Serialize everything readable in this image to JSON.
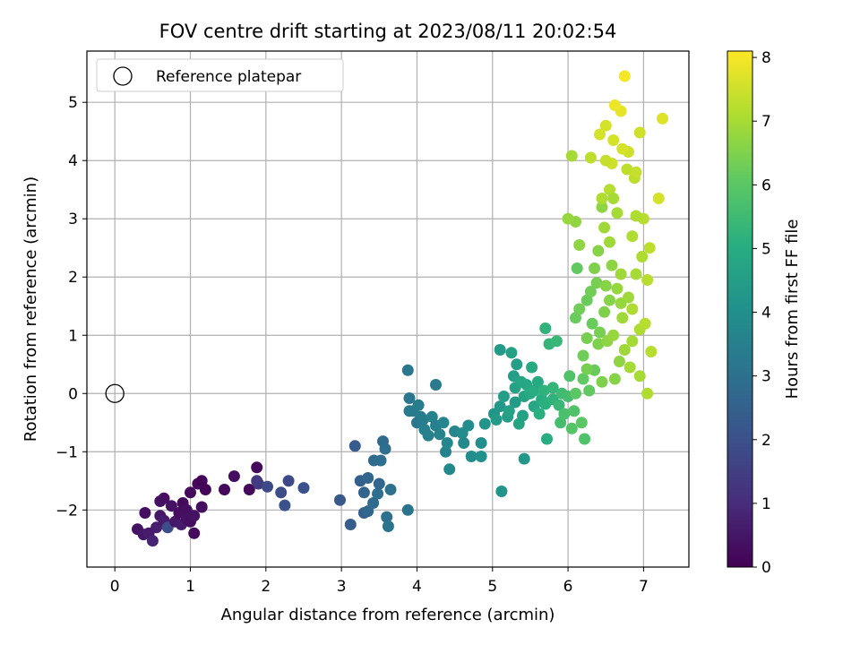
{
  "chart_data": {
    "type": "scatter",
    "title": "FOV centre drift starting at 2023/08/11 20:02:54",
    "xlabel": "Angular distance from reference (arcmin)",
    "ylabel": "Rotation from reference (arcmin)",
    "xlim": [
      -0.37,
      7.6
    ],
    "ylim": [
      -2.98,
      5.88
    ],
    "xticks": [
      0,
      1,
      2,
      3,
      4,
      5,
      6,
      7
    ],
    "yticks": [
      -2,
      -1,
      0,
      1,
      2,
      3,
      4,
      5
    ],
    "x_tick_labels": [
      "0",
      "1",
      "2",
      "3",
      "4",
      "5",
      "6",
      "7"
    ],
    "y_tick_labels": [
      "−2",
      "−1",
      "0",
      "1",
      "2",
      "3",
      "4",
      "5"
    ],
    "grid": true,
    "legend": {
      "placement": "top-left",
      "entries": [
        "Reference platepar"
      ]
    },
    "reference_point": {
      "x": 0,
      "y": 0,
      "marker": "open-circle"
    },
    "colorbar": {
      "label": "Hours from first FF file",
      "colormap": "viridis",
      "range": [
        0,
        8.1
      ],
      "ticks": [
        0,
        1,
        2,
        3,
        4,
        5,
        6,
        7,
        8
      ],
      "tick_labels": [
        "0",
        "1",
        "2",
        "3",
        "4",
        "5",
        "6",
        "7",
        "8"
      ]
    },
    "points": [
      [
        0.3,
        -2.33,
        0.4
      ],
      [
        0.38,
        -2.42,
        0.5
      ],
      [
        0.4,
        -2.05,
        0.3
      ],
      [
        0.45,
        -2.4,
        0.6
      ],
      [
        0.5,
        -2.53,
        0.8
      ],
      [
        0.55,
        -2.3,
        0.7
      ],
      [
        0.6,
        -2.1,
        0.5
      ],
      [
        0.6,
        -1.85,
        0.4
      ],
      [
        0.65,
        -1.8,
        0.3
      ],
      [
        0.65,
        -2.18,
        0.6
      ],
      [
        0.7,
        -2.3,
        1.9
      ],
      [
        0.75,
        -1.93,
        0.4
      ],
      [
        0.8,
        -2.2,
        0.5
      ],
      [
        0.85,
        -2.05,
        0.3
      ],
      [
        0.88,
        -2.25,
        0.6
      ],
      [
        0.9,
        -1.88,
        0.2
      ],
      [
        0.95,
        -2.0,
        0.3
      ],
      [
        0.95,
        -2.15,
        0.4
      ],
      [
        1.0,
        -1.7,
        0.2
      ],
      [
        1.0,
        -2.2,
        0.3
      ],
      [
        1.05,
        -2.4,
        0.2
      ],
      [
        1.05,
        -2.1,
        0.4
      ],
      [
        1.1,
        -1.55,
        0.2
      ],
      [
        1.15,
        -1.95,
        0.3
      ],
      [
        1.15,
        -1.5,
        0.1
      ],
      [
        1.2,
        -1.65,
        0.1
      ],
      [
        1.45,
        -1.65,
        0.2
      ],
      [
        1.58,
        -1.42,
        0.3
      ],
      [
        1.78,
        -1.65,
        0.2
      ],
      [
        1.88,
        -1.27,
        0.2
      ],
      [
        1.88,
        -1.5,
        1.3
      ],
      [
        1.9,
        -1.55,
        1.4
      ],
      [
        2.02,
        -1.6,
        1.8
      ],
      [
        2.2,
        -1.7,
        1.9
      ],
      [
        2.25,
        -1.92,
        2.0
      ],
      [
        2.3,
        -1.5,
        1.8
      ],
      [
        2.5,
        -1.62,
        2.0
      ],
      [
        2.98,
        -1.83,
        2.2
      ],
      [
        3.12,
        -2.25,
        2.4
      ],
      [
        3.18,
        -0.9,
        2.3
      ],
      [
        3.25,
        -1.5,
        2.5
      ],
      [
        3.3,
        -1.7,
        2.6
      ],
      [
        3.3,
        -2.05,
        2.5
      ],
      [
        3.35,
        -2.02,
        2.7
      ],
      [
        3.35,
        -1.45,
        2.7
      ],
      [
        3.42,
        -1.88,
        2.8
      ],
      [
        3.43,
        -1.15,
        2.8
      ],
      [
        3.48,
        -1.72,
        2.9
      ],
      [
        3.5,
        -1.55,
        2.7
      ],
      [
        3.52,
        -1.15,
        2.9
      ],
      [
        3.55,
        -0.82,
        2.8
      ],
      [
        3.58,
        -0.95,
        2.9
      ],
      [
        3.6,
        -2.12,
        3.0
      ],
      [
        3.62,
        -2.28,
        3.1
      ],
      [
        3.65,
        -1.65,
        3.0
      ],
      [
        3.88,
        -2.0,
        3.1
      ],
      [
        3.88,
        0.4,
        3.2
      ],
      [
        3.9,
        -0.08,
        3.2
      ],
      [
        3.9,
        -0.3,
        3.3
      ],
      [
        3.95,
        -0.3,
        3.3
      ],
      [
        4.0,
        -0.5,
        3.2
      ],
      [
        4.02,
        -0.2,
        3.4
      ],
      [
        4.05,
        -0.4,
        3.3
      ],
      [
        4.08,
        -0.45,
        3.4
      ],
      [
        4.1,
        -0.62,
        3.5
      ],
      [
        4.15,
        -0.72,
        3.5
      ],
      [
        4.2,
        -0.4,
        3.6
      ],
      [
        4.25,
        -0.55,
        3.5
      ],
      [
        4.25,
        0.15,
        3.3
      ],
      [
        4.3,
        -0.7,
        3.6
      ],
      [
        4.35,
        -0.5,
        3.7
      ],
      [
        4.38,
        -1.0,
        3.6
      ],
      [
        4.4,
        -0.85,
        3.7
      ],
      [
        4.43,
        -1.3,
        3.8
      ],
      [
        4.5,
        -0.65,
        3.7
      ],
      [
        4.6,
        -0.68,
        3.9
      ],
      [
        4.62,
        -0.85,
        3.8
      ],
      [
        4.68,
        -0.55,
        3.9
      ],
      [
        4.72,
        -1.08,
        3.9
      ],
      [
        4.85,
        -0.85,
        4.0
      ],
      [
        4.85,
        -1.08,
        4.1
      ],
      [
        4.9,
        -0.52,
        4.2
      ],
      [
        5.02,
        -0.35,
        4.2
      ],
      [
        5.05,
        -0.45,
        4.4
      ],
      [
        5.1,
        -0.22,
        4.3
      ],
      [
        5.1,
        0.75,
        4.4
      ],
      [
        5.12,
        -1.68,
        4.2
      ],
      [
        5.15,
        -0.05,
        4.5
      ],
      [
        5.2,
        -0.4,
        4.5
      ],
      [
        5.22,
        -0.3,
        4.6
      ],
      [
        5.25,
        0.7,
        4.6
      ],
      [
        5.28,
        0.3,
        4.5
      ],
      [
        5.3,
        -0.15,
        4.4
      ],
      [
        5.3,
        0.1,
        4.6
      ],
      [
        5.32,
        0.5,
        4.5
      ],
      [
        5.35,
        -0.52,
        4.7
      ],
      [
        5.38,
        0.2,
        4.8
      ],
      [
        5.4,
        -0.38,
        4.6
      ],
      [
        5.42,
        -1.12,
        4.3
      ],
      [
        5.42,
        -0.05,
        4.7
      ],
      [
        5.45,
        0.15,
        4.8
      ],
      [
        5.5,
        0.0,
        4.9
      ],
      [
        5.52,
        0.45,
        4.9
      ],
      [
        5.55,
        -0.22,
        4.8
      ],
      [
        5.55,
        0.05,
        5.0
      ],
      [
        5.6,
        0.2,
        4.9
      ],
      [
        5.62,
        -0.35,
        5.1
      ],
      [
        5.65,
        -0.1,
        5.0
      ],
      [
        5.68,
        0.05,
        5.2
      ],
      [
        5.7,
        -0.18,
        5.1
      ],
      [
        5.7,
        1.12,
        5.2
      ],
      [
        5.72,
        -0.78,
        5.0
      ],
      [
        5.75,
        0.85,
        5.3
      ],
      [
        5.8,
        -0.1,
        5.2
      ],
      [
        5.8,
        0.1,
        5.3
      ],
      [
        5.85,
        0.9,
        5.4
      ],
      [
        5.88,
        -0.2,
        5.4
      ],
      [
        5.9,
        -0.5,
        5.6
      ],
      [
        5.92,
        0.0,
        5.5
      ],
      [
        5.95,
        -0.35,
        5.7
      ],
      [
        6.0,
        -0.05,
        5.6
      ],
      [
        6.02,
        0.3,
        5.8
      ],
      [
        6.05,
        -0.6,
        5.9
      ],
      [
        6.05,
        4.08,
        7.0
      ],
      [
        6.08,
        -0.3,
        5.8
      ],
      [
        6.1,
        0.0,
        6.0
      ],
      [
        6.1,
        1.3,
        6.2
      ],
      [
        6.12,
        2.15,
        6.1
      ],
      [
        6.15,
        1.45,
        6.3
      ],
      [
        6.18,
        -0.5,
        6.0
      ],
      [
        6.2,
        0.25,
        6.1
      ],
      [
        6.2,
        0.65,
        6.3
      ],
      [
        6.22,
        -0.78,
        5.8
      ],
      [
        6.25,
        1.6,
        6.2
      ],
      [
        6.25,
        0.95,
        6.4
      ],
      [
        6.28,
        0.05,
        6.1
      ],
      [
        6.3,
        1.75,
        6.3
      ],
      [
        6.32,
        1.2,
        6.2
      ],
      [
        6.35,
        0.4,
        6.2
      ],
      [
        6.38,
        1.9,
        6.4
      ],
      [
        6.4,
        0.85,
        6.5
      ],
      [
        6.4,
        2.45,
        6.6
      ],
      [
        6.42,
        1.05,
        6.4
      ],
      [
        6.45,
        0.2,
        6.5
      ],
      [
        6.45,
        3.2,
        6.7
      ],
      [
        6.48,
        1.4,
        6.5
      ],
      [
        6.5,
        1.85,
        6.6
      ],
      [
        6.5,
        4.6,
        7.6
      ],
      [
        6.52,
        0.9,
        6.7
      ],
      [
        6.55,
        1.6,
        6.6
      ],
      [
        6.55,
        3.5,
        7.2
      ],
      [
        6.58,
        2.2,
        6.7
      ],
      [
        6.6,
        1.0,
        6.8
      ],
      [
        6.6,
        4.35,
        7.6
      ],
      [
        6.62,
        0.25,
        6.6
      ],
      [
        6.65,
        1.8,
        6.8
      ],
      [
        6.65,
        3.1,
        7.0
      ],
      [
        6.68,
        0.55,
        6.7
      ],
      [
        6.7,
        2.05,
        6.9
      ],
      [
        6.7,
        4.85,
        7.8
      ],
      [
        6.72,
        1.3,
        6.9
      ],
      [
        6.75,
        0.75,
        6.9
      ],
      [
        6.75,
        5.45,
        8.0
      ],
      [
        6.78,
        3.85,
        7.3
      ],
      [
        6.8,
        1.65,
        6.9
      ],
      [
        6.8,
        4.15,
        7.5
      ],
      [
        6.82,
        0.45,
        7.0
      ],
      [
        6.85,
        2.7,
        7.1
      ],
      [
        6.85,
        1.45,
        7.1
      ],
      [
        6.88,
        3.7,
        7.3
      ],
      [
        6.9,
        2.05,
        7.0
      ],
      [
        6.9,
        3.8,
        7.4
      ],
      [
        6.95,
        0.3,
        7.0
      ],
      [
        6.95,
        1.1,
        7.1
      ],
      [
        6.98,
        2.35,
        7.1
      ],
      [
        7.0,
        3.0,
        7.2
      ],
      [
        7.02,
        1.2,
        7.2
      ],
      [
        7.05,
        1.95,
        7.2
      ],
      [
        7.05,
        0.0,
        7.1
      ],
      [
        7.08,
        2.5,
        7.3
      ],
      [
        7.1,
        0.72,
        7.2
      ],
      [
        7.2,
        3.35,
        7.6
      ],
      [
        7.25,
        4.72,
        7.7
      ],
      [
        6.95,
        4.48,
        7.5
      ],
      [
        6.72,
        4.2,
        7.6
      ],
      [
        6.6,
        3.35,
        7.0
      ],
      [
        6.42,
        4.45,
        7.6
      ],
      [
        6.55,
        2.6,
        6.9
      ],
      [
        6.35,
        2.15,
        6.5
      ],
      [
        6.25,
        0.42,
        6.4
      ],
      [
        6.1,
        2.95,
        6.7
      ],
      [
        6.15,
        2.55,
        6.7
      ],
      [
        6.0,
        3.0,
        6.8
      ],
      [
        6.58,
        3.95,
        7.5
      ],
      [
        6.48,
        2.85,
        6.9
      ],
      [
        6.62,
        4.95,
        7.9
      ],
      [
        6.9,
        3.05,
        7.1
      ],
      [
        6.5,
        4.0,
        7.4
      ],
      [
        6.7,
        1.55,
        6.8
      ],
      [
        6.85,
        0.9,
        7.0
      ],
      [
        6.3,
        4.05,
        7.3
      ],
      [
        6.45,
        3.35,
        7.1
      ]
    ]
  }
}
